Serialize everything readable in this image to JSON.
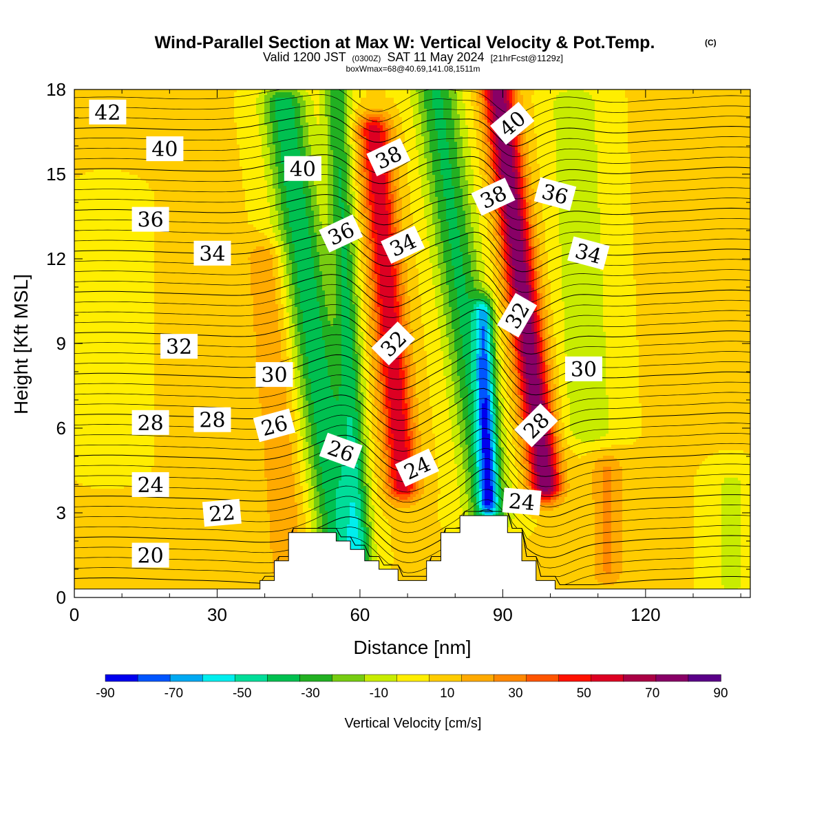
{
  "header": {
    "title": "Wind-Parallel Section at Max W: Vertical Velocity & Pot.Temp.",
    "copyright": "(C)",
    "valid_prefix": "Valid 1200 JST",
    "utc": "(0300Z)",
    "date": "SAT 11 May 2024",
    "forecast": "[21hrFcst@1129z]",
    "box_info": "boxWmax=68@40.69,141.08,1511m"
  },
  "chart_data": {
    "type": "heatmap",
    "title": "Wind-Parallel Section at Max W: Vertical Velocity & Pot.Temp.",
    "xlabel": "Distance [nm]",
    "ylabel": "Height [Kft MSL]",
    "xlim": [
      0,
      142
    ],
    "ylim": [
      0,
      18
    ],
    "x_ticks": [
      0,
      30,
      60,
      90,
      120
    ],
    "x_tick_labels": [
      "0",
      "30",
      "60",
      "90",
      "120"
    ],
    "y_ticks": [
      0,
      3,
      6,
      9,
      12,
      15,
      18
    ],
    "y_tick_labels": [
      "0",
      "3",
      "6",
      "9",
      "12",
      "15",
      "18"
    ],
    "background_w": 5,
    "w_features": [
      {
        "x_bottom": 56,
        "x_top": 44,
        "z_bottom": 1.5,
        "z_top": 17.5,
        "width": 7,
        "w": -45
      },
      {
        "x_bottom": 60,
        "x_top": 55,
        "z_bottom": 1.0,
        "z_top": 18,
        "width": 4,
        "w": -38
      },
      {
        "x_bottom": 69,
        "x_top": 63,
        "z_bottom": 4.0,
        "z_top": 16.5,
        "width": 5,
        "w": 55
      },
      {
        "x_bottom": 87,
        "x_top": 76,
        "z_bottom": 3.0,
        "z_top": 18,
        "width": 7,
        "w": -40
      },
      {
        "x_bottom": 87,
        "x_top": 86,
        "z_bottom": 3.5,
        "z_top": 10,
        "width": 3,
        "w": -55
      },
      {
        "x_bottom": 99,
        "x_top": 89,
        "z_bottom": 4.0,
        "z_top": 18,
        "width": 5,
        "w": 75
      },
      {
        "x_bottom": 108,
        "x_top": 105,
        "z_bottom": 6.0,
        "z_top": 17.5,
        "width": 8,
        "w": -18
      },
      {
        "x_bottom": 7,
        "x_top": 7,
        "z_bottom": 5.0,
        "z_top": 14,
        "width": 8,
        "w": -8
      },
      {
        "x_bottom": 45,
        "x_top": 40,
        "z_bottom": 1.0,
        "z_top": 12,
        "width": 6,
        "w": 18
      },
      {
        "x_bottom": 112,
        "x_top": 112,
        "z_bottom": 1.0,
        "z_top": 4.5,
        "width": 5,
        "w": 20
      },
      {
        "x_bottom": 138,
        "x_top": 138,
        "z_bottom": 0.5,
        "z_top": 4,
        "width": 6,
        "w": -12
      }
    ],
    "terrain": {
      "x": [
        0,
        39,
        39,
        42,
        42,
        45,
        45,
        55,
        55,
        58,
        58,
        61,
        61,
        64,
        64,
        68,
        68,
        74,
        74,
        77,
        77,
        81,
        81,
        91,
        91,
        94,
        94,
        97,
        97,
        101,
        101,
        142
      ],
      "z": [
        0.3,
        0.3,
        0.6,
        0.6,
        1.3,
        1.3,
        2.3,
        2.3,
        2.0,
        2.0,
        1.7,
        1.7,
        1.3,
        1.3,
        1.0,
        1.0,
        0.6,
        0.6,
        1.3,
        1.3,
        2.3,
        2.3,
        2.9,
        2.9,
        2.3,
        2.3,
        1.3,
        1.3,
        0.6,
        0.6,
        0.3,
        0.3
      ]
    },
    "theta_contours": {
      "levels": [
        20,
        22,
        24,
        26,
        28,
        30,
        32,
        34,
        36,
        38,
        40,
        42
      ],
      "labels": [
        {
          "text": "42",
          "x": 7,
          "z": 17.2,
          "angle": 0
        },
        {
          "text": "40",
          "x": 19,
          "z": 15.9,
          "angle": 0
        },
        {
          "text": "40",
          "x": 48,
          "z": 15.2,
          "angle": 0
        },
        {
          "text": "38",
          "x": 66,
          "z": 15.6,
          "angle": -25
        },
        {
          "text": "40",
          "x": 92,
          "z": 16.8,
          "angle": -40
        },
        {
          "text": "38",
          "x": 88,
          "z": 14.2,
          "angle": -25
        },
        {
          "text": "36",
          "x": 101,
          "z": 14.3,
          "angle": 15
        },
        {
          "text": "36",
          "x": 16,
          "z": 13.4,
          "angle": 0
        },
        {
          "text": "36",
          "x": 56,
          "z": 12.9,
          "angle": -25
        },
        {
          "text": "34",
          "x": 29,
          "z": 12.2,
          "angle": 0
        },
        {
          "text": "34",
          "x": 69,
          "z": 12.5,
          "angle": -25
        },
        {
          "text": "34",
          "x": 108,
          "z": 12.2,
          "angle": 15
        },
        {
          "text": "32",
          "x": 93,
          "z": 10.0,
          "angle": -60
        },
        {
          "text": "32",
          "x": 22,
          "z": 8.9,
          "angle": 0
        },
        {
          "text": "32",
          "x": 67,
          "z": 9.0,
          "angle": -45
        },
        {
          "text": "30",
          "x": 42,
          "z": 7.9,
          "angle": 0
        },
        {
          "text": "30",
          "x": 107,
          "z": 8.1,
          "angle": 0
        },
        {
          "text": "28",
          "x": 16,
          "z": 6.2,
          "angle": 0
        },
        {
          "text": "28",
          "x": 29,
          "z": 6.3,
          "angle": 0
        },
        {
          "text": "26",
          "x": 42,
          "z": 6.1,
          "angle": -15
        },
        {
          "text": "28",
          "x": 97,
          "z": 6.1,
          "angle": -45
        },
        {
          "text": "26",
          "x": 56,
          "z": 5.2,
          "angle": 20
        },
        {
          "text": "24",
          "x": 72,
          "z": 4.6,
          "angle": -25
        },
        {
          "text": "24",
          "x": 16,
          "z": 4.0,
          "angle": 0
        },
        {
          "text": "24",
          "x": 94,
          "z": 3.4,
          "angle": 5
        },
        {
          "text": "22",
          "x": 31,
          "z": 3.0,
          "angle": -5
        },
        {
          "text": "20",
          "x": 16,
          "z": 1.5,
          "angle": 0
        }
      ]
    },
    "colorbar": {
      "title": "Vertical Velocity [cm/s]",
      "range": [
        -90,
        90
      ],
      "colors": [
        "#0000ee",
        "#0055ff",
        "#00a9f2",
        "#00eeee",
        "#00dd99",
        "#00c050",
        "#22b022",
        "#77cc11",
        "#c8ec00",
        "#ffee00",
        "#ffcc00",
        "#ffaa00",
        "#ff8800",
        "#ff5500",
        "#ff1100",
        "#dd0022",
        "#aa0044",
        "#880066",
        "#5a0088"
      ],
      "tick_values": [
        -90,
        -70,
        -50,
        -30,
        -10,
        10,
        30,
        50,
        70,
        90
      ],
      "tick_labels": [
        "-90",
        "-70",
        "-50",
        "-30",
        "-10",
        "10",
        "30",
        "50",
        "70",
        "90"
      ]
    }
  }
}
